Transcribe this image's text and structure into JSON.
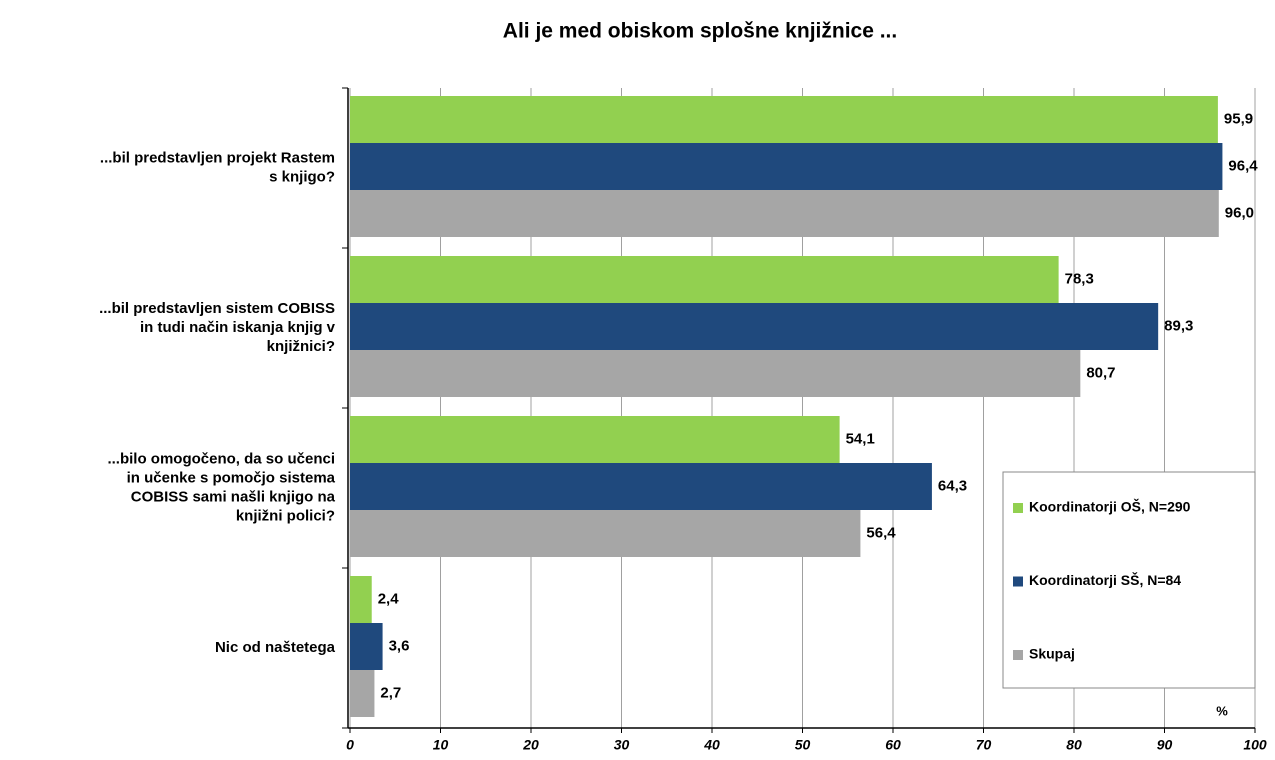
{
  "chart_data": {
    "type": "bar",
    "orientation": "horizontal",
    "title": "Ali je med obiskom splošne knjižnice ...",
    "categories": [
      [
        "...bil predstavljen projekt Rastem",
        "s knjigo?"
      ],
      [
        "...bil predstavljen sistem COBISS",
        "in tudi način iskanja knjig v",
        "knjižnici?"
      ],
      [
        "...bilo omogočeno, da so učenci",
        "in učenke s pomočjo sistema",
        "COBISS sami našli knjigo na",
        "knjižni polici?"
      ],
      [
        "Nic od naštetega"
      ]
    ],
    "series": [
      {
        "name": "Koordinatorji OŠ, N=290",
        "color": "#92d050",
        "values": [
          95.9,
          78.3,
          54.1,
          2.4
        ],
        "value_labels": [
          "95,9",
          "78,3",
          "54,1",
          "2,4"
        ]
      },
      {
        "name": "Koordinatorji SŠ, N=84",
        "color": "#1f497d",
        "values": [
          96.4,
          89.3,
          64.3,
          3.6
        ],
        "value_labels": [
          "96,4",
          "89,3",
          "64,3",
          "3,6"
        ]
      },
      {
        "name": "Skupaj",
        "color": "#a6a6a6",
        "values": [
          96.0,
          80.7,
          56.4,
          2.7
        ],
        "value_labels": [
          "96,0",
          "80,7",
          "56,4",
          "2,7"
        ]
      }
    ],
    "x_label": "%",
    "xlim": [
      0,
      100
    ],
    "xticks": [
      0,
      10,
      20,
      30,
      40,
      50,
      60,
      70,
      80,
      90,
      100
    ],
    "grid": true,
    "legend": "lower right"
  }
}
